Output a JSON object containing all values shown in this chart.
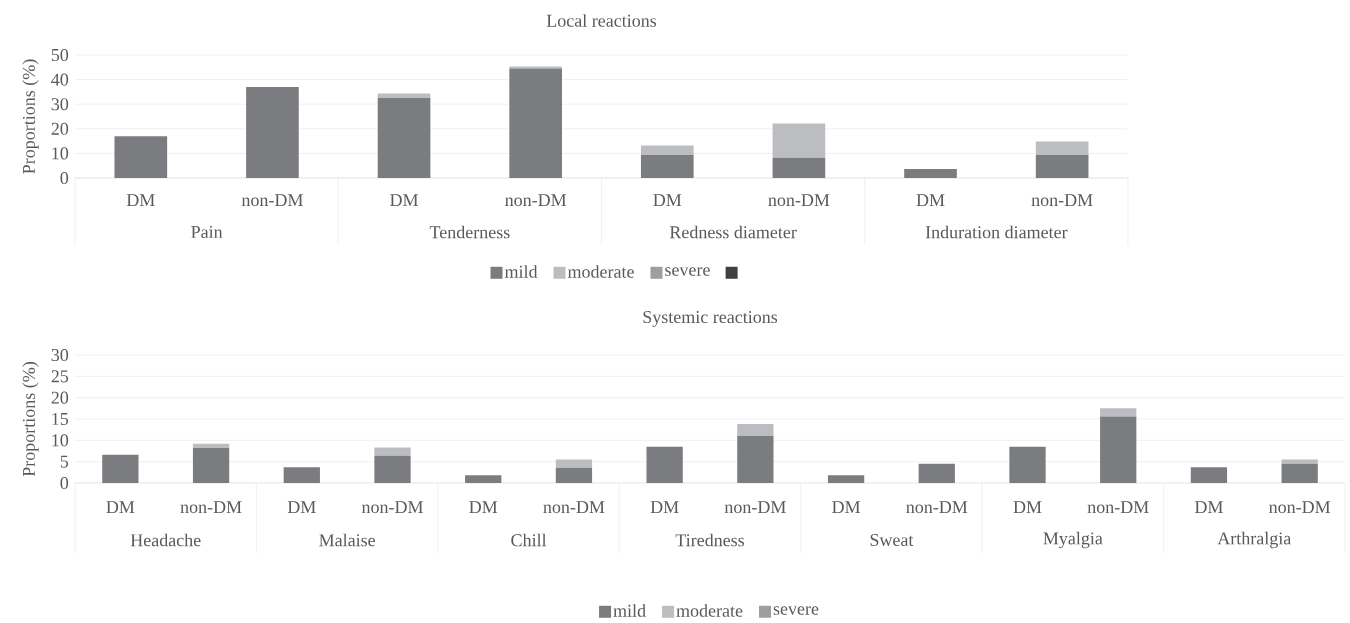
{
  "chart_data": [
    {
      "type": "bar",
      "stacked": true,
      "title": "Local reactions",
      "ylabel": "Proportions (%)",
      "categories": [
        "DM",
        "non-DM",
        "DM",
        "non-DM",
        "DM",
        "non-DM",
        "DM",
        "non-DM"
      ],
      "annotations": [
        "Pain",
        "Tenderness",
        "Redness diameter",
        "Induration diameter"
      ],
      "series": [
        {
          "name": "mild",
          "color": "#7b7c80",
          "values": [
            17,
            37,
            32.5,
            44.5,
            9.3,
            8.2,
            3.7,
            9.3
          ]
        },
        {
          "name": "moderate",
          "color": "#bcbdc1",
          "values": [
            0,
            0,
            1.8,
            0.8,
            3.9,
            14,
            0,
            5.5
          ]
        },
        {
          "name": "severe",
          "color": "#9d9ea2",
          "values": [
            0,
            0,
            0,
            0,
            0,
            0,
            0,
            0
          ]
        }
      ],
      "ylim": [
        0,
        50
      ],
      "yticks": [
        0,
        10,
        20,
        30,
        40,
        50
      ],
      "grid": "y",
      "legend": "bottom"
    },
    {
      "type": "bar",
      "stacked": true,
      "title": "Systemic reactions",
      "ylabel": "Proportions (%)",
      "categories": [
        "DM",
        "non-DM",
        "DM",
        "non-DM",
        "DM",
        "non-DM",
        "DM",
        "non-DM",
        "DM",
        "non-DM",
        "DM",
        "non-DM",
        "DM",
        "non-DM"
      ],
      "annotations": [
        "Headache",
        "Malaise",
        "Chill",
        "Tiredness",
        "Sweat",
        "Myalgia",
        "Arthralgia"
      ],
      "series": [
        {
          "name": "mild",
          "color": "#7b7c80",
          "values": [
            6.6,
            8.2,
            3.7,
            6.4,
            1.8,
            3.6,
            8.5,
            11,
            1.8,
            4.5,
            8.5,
            15.6,
            3.7,
            4.5
          ]
        },
        {
          "name": "moderate",
          "color": "#bcbdc1",
          "values": [
            0,
            1,
            0,
            1.9,
            0,
            1.9,
            0,
            2.8,
            0,
            0,
            0,
            1.9,
            0,
            1
          ]
        },
        {
          "name": "severe",
          "color": "#9d9ea2",
          "values": [
            0,
            0,
            0,
            0,
            0,
            0,
            0,
            0,
            0,
            0,
            0,
            0,
            0,
            0
          ]
        }
      ],
      "ylim": [
        0,
        30
      ],
      "yticks": [
        0,
        5,
        10,
        15,
        20,
        25,
        30
      ],
      "grid": "y",
      "legend": "bottom"
    }
  ]
}
